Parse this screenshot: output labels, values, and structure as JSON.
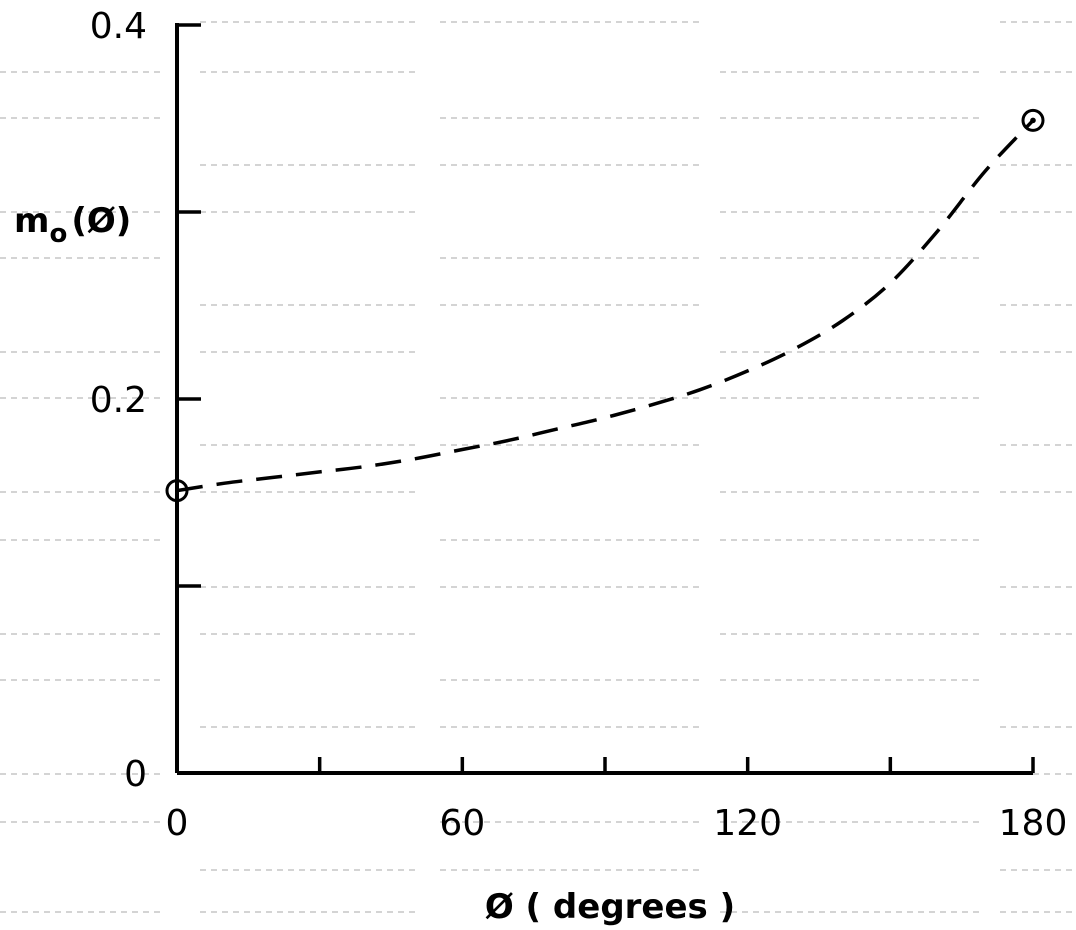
{
  "chart_data": {
    "type": "line",
    "title": "",
    "xlabel": "Ø ( degrees )",
    "ylabel_main": "m",
    "ylabel_sub": "o",
    "ylabel_arg": "(Ø)",
    "xlim": [
      0,
      180
    ],
    "ylim": [
      0,
      0.4
    ],
    "x_ticks": [
      0,
      30,
      60,
      90,
      120,
      150,
      180
    ],
    "x_tick_labels": [
      "0",
      "",
      "60",
      "",
      "120",
      "",
      "180"
    ],
    "y_ticks": [
      0,
      0.1,
      0.2,
      0.3,
      0.4
    ],
    "y_tick_labels": [
      "0",
      "",
      "0.2",
      "",
      "0.4"
    ],
    "grid": false,
    "series": [
      {
        "style": "dashed",
        "x": [
          0,
          10,
          20,
          30,
          40,
          50,
          60,
          70,
          80,
          90,
          100,
          110,
          120,
          130,
          140,
          150,
          160,
          170,
          180
        ],
        "y": [
          0.151,
          0.155,
          0.158,
          0.161,
          0.164,
          0.168,
          0.173,
          0.178,
          0.184,
          0.19,
          0.197,
          0.205,
          0.215,
          0.227,
          0.242,
          0.262,
          0.29,
          0.322,
          0.349
        ]
      }
    ],
    "markers": [
      {
        "x": 0,
        "y": 0.151,
        "style": "open-circle"
      },
      {
        "x": 180,
        "y": 0.349,
        "style": "circle-dot"
      }
    ]
  }
}
